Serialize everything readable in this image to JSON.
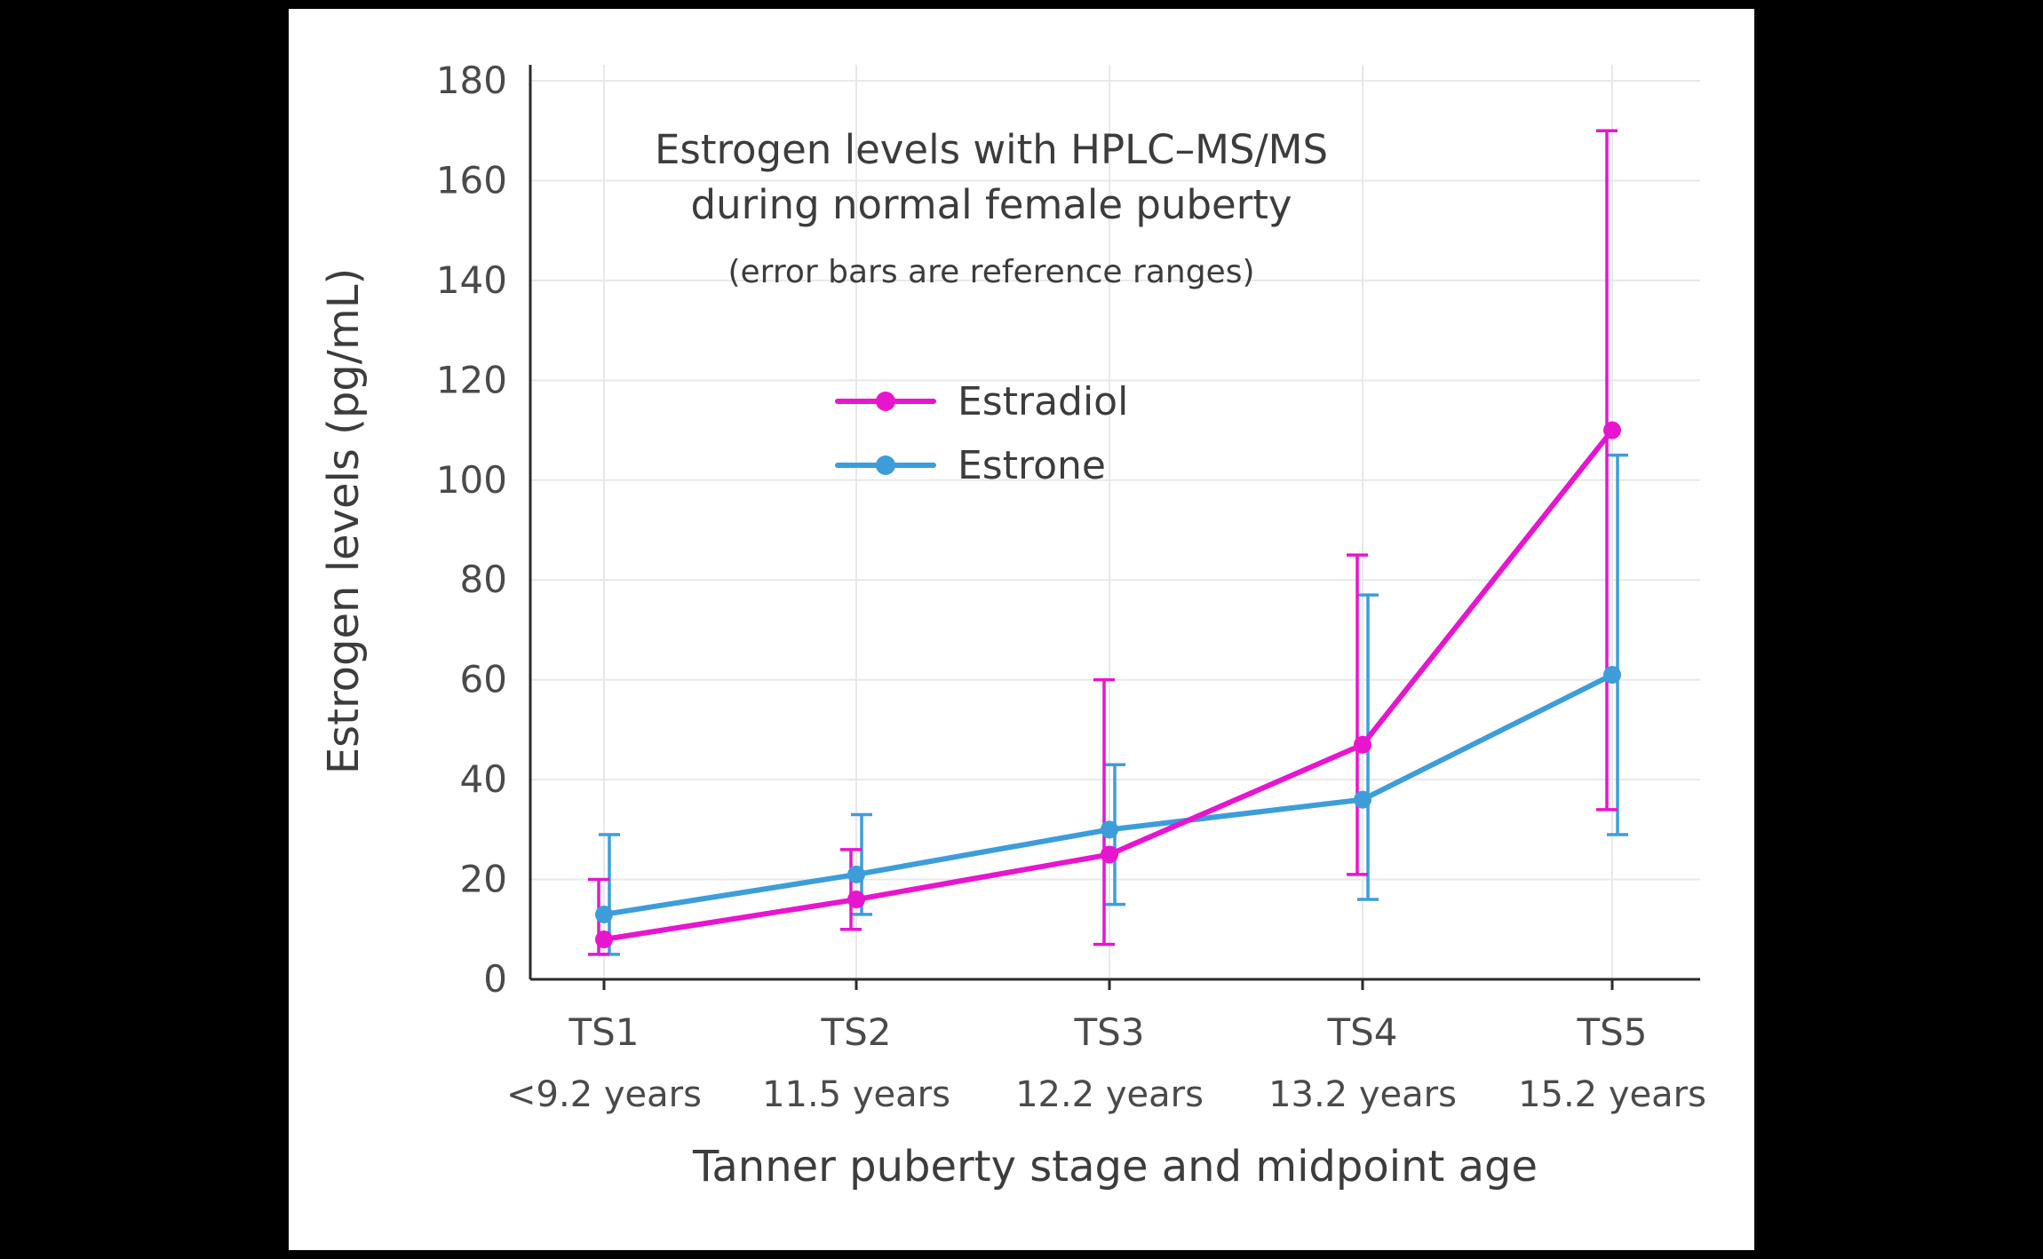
{
  "page": {
    "background": "#000000",
    "panel_background": "#ffffff"
  },
  "chart_data": {
    "type": "line",
    "title_line1": "Estrogen levels with HPLC–MS/MS",
    "title_line2": "during normal female puberty",
    "subtitle": "(error bars are reference ranges)",
    "xlabel": "Tanner puberty stage and midpoint age",
    "ylabel": "Estrogen levels (pg/mL)",
    "categories": [
      "TS1",
      "TS2",
      "TS3",
      "TS4",
      "TS5"
    ],
    "category_ages": [
      "<9.2 years",
      "11.5 years",
      "12.2 years",
      "13.2 years",
      "15.2 years"
    ],
    "ylim": [
      0,
      180
    ],
    "ytick_step": 20,
    "grid": true,
    "legend_position": "upper-left-inside",
    "series": [
      {
        "name": "Estradiol",
        "color": "#e815cf",
        "values": [
          8,
          16,
          25,
          47,
          110
        ],
        "error_low": [
          5,
          10,
          7,
          21,
          34
        ],
        "error_high": [
          20,
          26,
          60,
          85,
          170
        ]
      },
      {
        "name": "Estrone",
        "color": "#3d9ddb",
        "values": [
          13,
          21,
          30,
          36,
          61
        ],
        "error_low": [
          5,
          13,
          15,
          16,
          29
        ],
        "error_high": [
          29,
          33,
          43,
          77,
          105
        ]
      }
    ]
  }
}
